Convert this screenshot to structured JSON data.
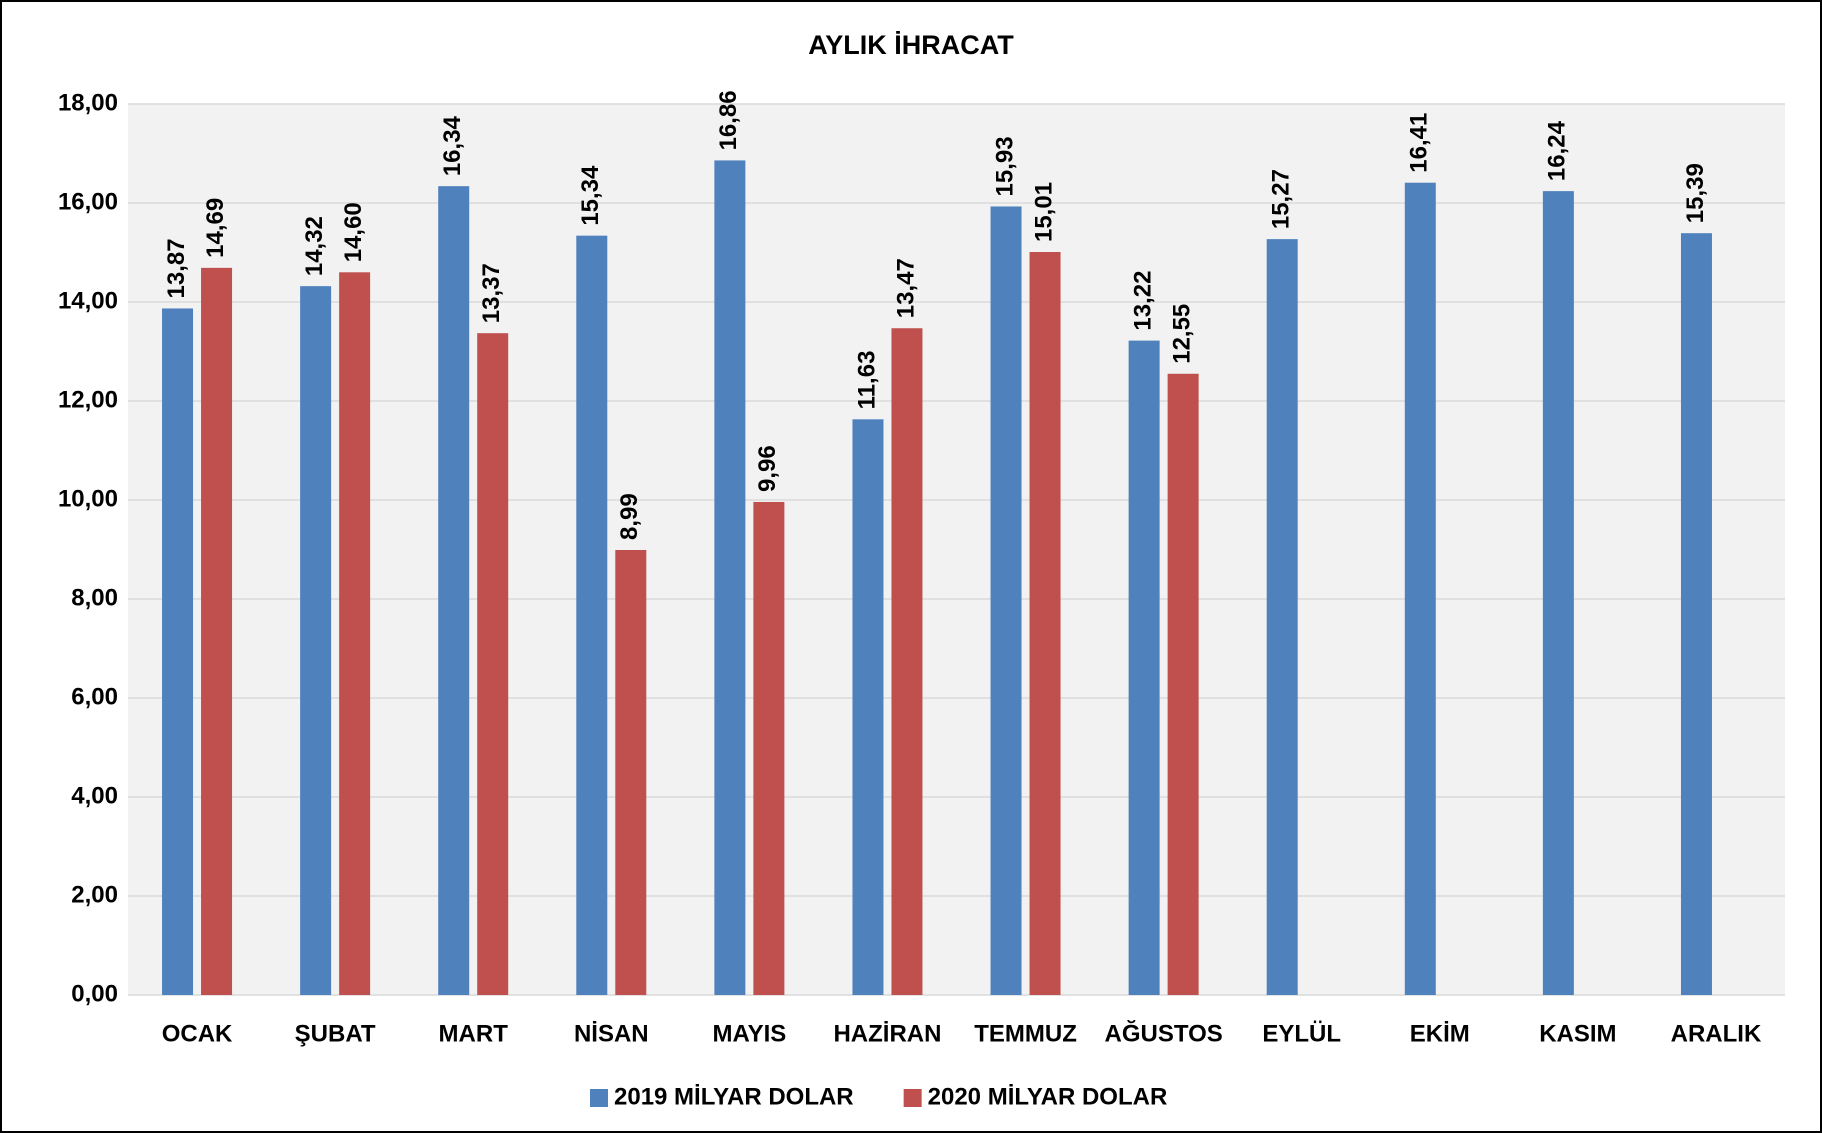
{
  "chart_data": {
    "type": "bar",
    "title": "AYLIK İHRACAT",
    "categories": [
      "OCAK",
      "ŞUBAT",
      "MART",
      "NİSAN",
      "MAYIS",
      "HAZİRAN",
      "TEMMUZ",
      "AĞUSTOS",
      "EYLÜL",
      "EKİM",
      "KASIM",
      "ARALIK"
    ],
    "series": [
      {
        "name": "2019 MİLYAR DOLAR",
        "color": "#4f81bd",
        "values": [
          13.87,
          14.32,
          16.34,
          15.34,
          16.86,
          11.63,
          15.93,
          13.22,
          15.27,
          16.41,
          16.24,
          15.39
        ],
        "value_labels": [
          "13,87",
          "14,32",
          "16,34",
          "15,34",
          "16,86",
          "11,63",
          "15,93",
          "13,22",
          "15,27",
          "16,41",
          "16,24",
          "15,39"
        ]
      },
      {
        "name": "2020 MİLYAR DOLAR",
        "color": "#c0504d",
        "values": [
          14.69,
          14.6,
          13.37,
          8.99,
          9.96,
          13.47,
          15.01,
          12.55,
          null,
          null,
          null,
          null
        ],
        "value_labels": [
          "14,69",
          "14,60",
          "13,37",
          "8,99",
          "9,96",
          "13,47",
          "15,01",
          "12,55",
          null,
          null,
          null,
          null
        ]
      }
    ],
    "ylim": [
      0,
      18
    ],
    "yticks": [
      {
        "value": 0,
        "label": "0,00"
      },
      {
        "value": 2,
        "label": "2,00"
      },
      {
        "value": 4,
        "label": "4,00"
      },
      {
        "value": 6,
        "label": "6,00"
      },
      {
        "value": 8,
        "label": "8,00"
      },
      {
        "value": 10,
        "label": "10,00"
      },
      {
        "value": 12,
        "label": "12,00"
      },
      {
        "value": 14,
        "label": "14,00"
      },
      {
        "value": 16,
        "label": "16,00"
      },
      {
        "value": 18,
        "label": "18,00"
      }
    ],
    "grid": true,
    "legend": "bottom"
  }
}
